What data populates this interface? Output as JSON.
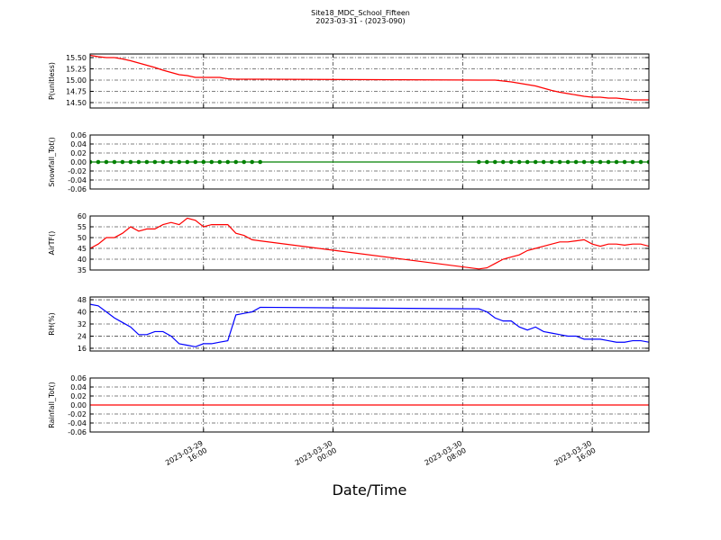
{
  "chart_data": {
    "type": "line",
    "title": "Site18_MDC_School_Fifteen",
    "subtitle": "2023-03-31 - (2023-090)",
    "xlabel": "Date/Time",
    "x": [
      "2023-03-29 09:00",
      "2023-03-29 09:30",
      "2023-03-29 10:00",
      "2023-03-29 10:30",
      "2023-03-29 11:00",
      "2023-03-29 11:30",
      "2023-03-29 12:00",
      "2023-03-29 12:30",
      "2023-03-29 13:00",
      "2023-03-29 13:30",
      "2023-03-29 14:00",
      "2023-03-29 14:30",
      "2023-03-29 15:00",
      "2023-03-29 15:30",
      "2023-03-29 16:00",
      "2023-03-29 16:30",
      "2023-03-29 17:00",
      "2023-03-29 17:30",
      "2023-03-29 18:00",
      "2023-03-29 18:30",
      "2023-03-29 19:00",
      "2023-03-29 19:30",
      "2023-03-30 09:00",
      "2023-03-30 09:30",
      "2023-03-30 10:00",
      "2023-03-30 10:30",
      "2023-03-30 11:00",
      "2023-03-30 11:30",
      "2023-03-30 12:00",
      "2023-03-30 12:30",
      "2023-03-30 13:00",
      "2023-03-30 13:30",
      "2023-03-30 14:00",
      "2023-03-30 14:30",
      "2023-03-30 15:00",
      "2023-03-30 15:30",
      "2023-03-30 16:00",
      "2023-03-30 16:30",
      "2023-03-30 17:00",
      "2023-03-30 17:30",
      "2023-03-30 18:00",
      "2023-03-30 18:30",
      "2023-03-30 19:00",
      "2023-03-30 19:30"
    ],
    "xlim": [
      "2023-03-29 09:00",
      "2023-03-30 19:30"
    ],
    "xticks": [
      {
        "value": "2023-03-29 16:00",
        "label": "2023-03-29\n16:00"
      },
      {
        "value": "2023-03-30 00:00",
        "label": "2023-03-30\n00:00"
      },
      {
        "value": "2023-03-30 08:00",
        "label": "2023-03-30\n08:00"
      },
      {
        "value": "2023-03-30 16:00",
        "label": "2023-03-30\n16:00"
      }
    ],
    "grid": true,
    "series": [
      {
        "name": "P(unitless)",
        "color": "#ff0000",
        "marker": null,
        "ylim": [
          14.38,
          15.58
        ],
        "yticks": [
          {
            "value": 14.5,
            "label": "14.50"
          },
          14.75,
          {
            "value": 15,
            "label": "15.00"
          },
          15.25,
          {
            "value": 15.5,
            "label": "15.50"
          }
        ],
        "values": [
          15.55,
          15.52,
          15.5,
          15.5,
          15.47,
          15.43,
          15.38,
          15.33,
          15.28,
          15.22,
          15.17,
          15.12,
          15.1,
          15.06,
          15.06,
          15.06,
          15.06,
          15.03,
          15.02,
          15.02,
          15.02,
          15.02,
          15,
          15,
          15,
          14.98,
          14.96,
          14.93,
          14.9,
          14.87,
          14.82,
          14.77,
          14.73,
          14.7,
          14.67,
          14.64,
          14.62,
          14.62,
          14.6,
          14.6,
          14.58,
          14.56,
          14.56,
          14.56
        ]
      },
      {
        "name": "Snowfall_Tot()",
        "color": "#008000",
        "marker": "o",
        "ylim": [
          -0.06,
          0.06
        ],
        "yticks": [
          -0.06,
          -0.04,
          -0.02,
          {
            "value": 0,
            "label": "0.00"
          },
          0.02,
          0.04,
          0.06
        ],
        "values": [
          0,
          0,
          0,
          0,
          0,
          0,
          0,
          0,
          0,
          0,
          0,
          0,
          0,
          0,
          0,
          0,
          0,
          0,
          0,
          0,
          0,
          0,
          0,
          0,
          0,
          0,
          0,
          0,
          0,
          0,
          0,
          0,
          0,
          0,
          0,
          0,
          0,
          0,
          0,
          0,
          0,
          0,
          0,
          0
        ]
      },
      {
        "name": "AirTF()",
        "color": "#ff0000",
        "marker": null,
        "ylim": [
          35,
          60
        ],
        "yticks": [
          35,
          40,
          45,
          50,
          55,
          60
        ],
        "values": [
          45,
          47,
          50,
          50,
          52,
          55,
          53,
          54,
          54,
          56,
          57,
          56,
          59,
          58,
          55,
          56,
          56,
          56,
          52,
          51,
          49,
          48.5,
          35.5,
          36,
          38,
          40,
          41,
          42,
          44,
          45,
          46,
          47,
          48,
          48,
          48.5,
          49,
          47,
          46,
          47,
          47,
          46.5,
          47,
          47,
          46
        ]
      },
      {
        "name": "RH(%)",
        "color": "#0000ff",
        "marker": null,
        "ylim": [
          14.2,
          49.8
        ],
        "yticks": [
          16,
          24,
          32,
          40,
          48
        ],
        "values": [
          45,
          44,
          40,
          36,
          33,
          30,
          25,
          25,
          27,
          27,
          24,
          19,
          18,
          17,
          19,
          19,
          20,
          21,
          38,
          39,
          40,
          43,
          42,
          40,
          36,
          34,
          34,
          30,
          28,
          30,
          27,
          26,
          25,
          24,
          24,
          22,
          22,
          22,
          21,
          20,
          20,
          21,
          21,
          20
        ]
      },
      {
        "name": "Rainfall_Tot()",
        "color": "#ff0000",
        "marker": null,
        "ylim": [
          -0.06,
          0.06
        ],
        "yticks": [
          -0.06,
          -0.04,
          -0.02,
          {
            "value": 0,
            "label": "0.00"
          },
          0.02,
          0.04,
          0.06
        ],
        "values": [
          0,
          0,
          0,
          0,
          0,
          0,
          0,
          0,
          0,
          0,
          0,
          0,
          0,
          0,
          0,
          0,
          0,
          0,
          0,
          0,
          0,
          0,
          0,
          0,
          0,
          0,
          0,
          0,
          0,
          0,
          0,
          0,
          0,
          0,
          0,
          0,
          0,
          0,
          0,
          0,
          0,
          0,
          0,
          0
        ]
      }
    ]
  }
}
